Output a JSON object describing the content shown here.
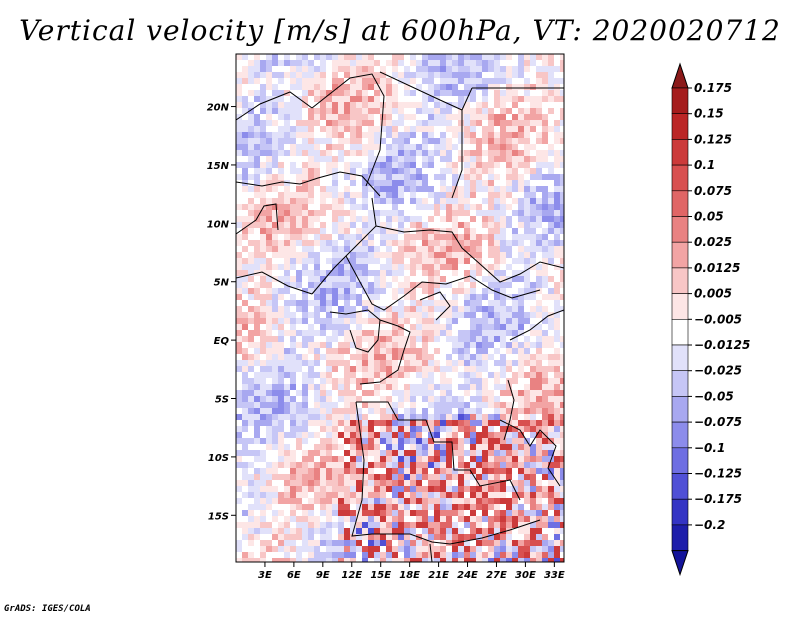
{
  "title": "Vertical velocity [m/s] at 600hPa, VT: 2020020712",
  "footer": "GrADS: IGES/COLA",
  "map": {
    "variable": "Vertical velocity",
    "units": "m/s",
    "level": "600hPa",
    "valid_time": "2020020712",
    "lat_range": [
      -19,
      24.5
    ],
    "lon_range": [
      0,
      34
    ],
    "lat_ticks": [
      {
        "value": 20,
        "label": "20N"
      },
      {
        "value": 15,
        "label": "15N"
      },
      {
        "value": 10,
        "label": "10N"
      },
      {
        "value": 5,
        "label": "5N"
      },
      {
        "value": 0,
        "label": "EQ"
      },
      {
        "value": -5,
        "label": "5S"
      },
      {
        "value": -10,
        "label": "10S"
      },
      {
        "value": -15,
        "label": "15S"
      }
    ],
    "lon_ticks": [
      {
        "value": 3,
        "label": "3E"
      },
      {
        "value": 6,
        "label": "6E"
      },
      {
        "value": 9,
        "label": "9E"
      },
      {
        "value": 12,
        "label": "12E"
      },
      {
        "value": 15,
        "label": "15E"
      },
      {
        "value": 18,
        "label": "18E"
      },
      {
        "value": 21,
        "label": "21E"
      },
      {
        "value": 24,
        "label": "24E"
      },
      {
        "value": 27,
        "label": "27E"
      },
      {
        "value": 30,
        "label": "30E"
      },
      {
        "value": 33,
        "label": "33E"
      }
    ]
  },
  "colorbar": {
    "levels": [
      {
        "label": "0.175",
        "color": "#a51d1d"
      },
      {
        "label": "0.15",
        "color": "#bb2626"
      },
      {
        "label": "0.125",
        "color": "#cc3a3a"
      },
      {
        "label": "0.1",
        "color": "#d85050"
      },
      {
        "label": "0.075",
        "color": "#e06666"
      },
      {
        "label": "0.05",
        "color": "#e98282"
      },
      {
        "label": "0.025",
        "color": "#f2a4a4"
      },
      {
        "label": "0.0125",
        "color": "#f8c6c6"
      },
      {
        "label": "0.005",
        "color": "#fde6e6"
      },
      {
        "label": "−0.005",
        "color": "#ffffff"
      },
      {
        "label": "−0.0125",
        "color": "#e1e1fa"
      },
      {
        "label": "−0.025",
        "color": "#c6c6f6"
      },
      {
        "label": "−0.05",
        "color": "#a8a8f0"
      },
      {
        "label": "−0.075",
        "color": "#8c8ceb"
      },
      {
        "label": "−0.1",
        "color": "#6e6ee2"
      },
      {
        "label": "−0.125",
        "color": "#5050d6"
      },
      {
        "label": "−0.175",
        "color": "#3434c4"
      },
      {
        "label": "−0.2",
        "color": "#1e1eaa"
      }
    ],
    "top_arrow_color": "#8b1a1a",
    "bottom_arrow_color": "#14149a"
  }
}
